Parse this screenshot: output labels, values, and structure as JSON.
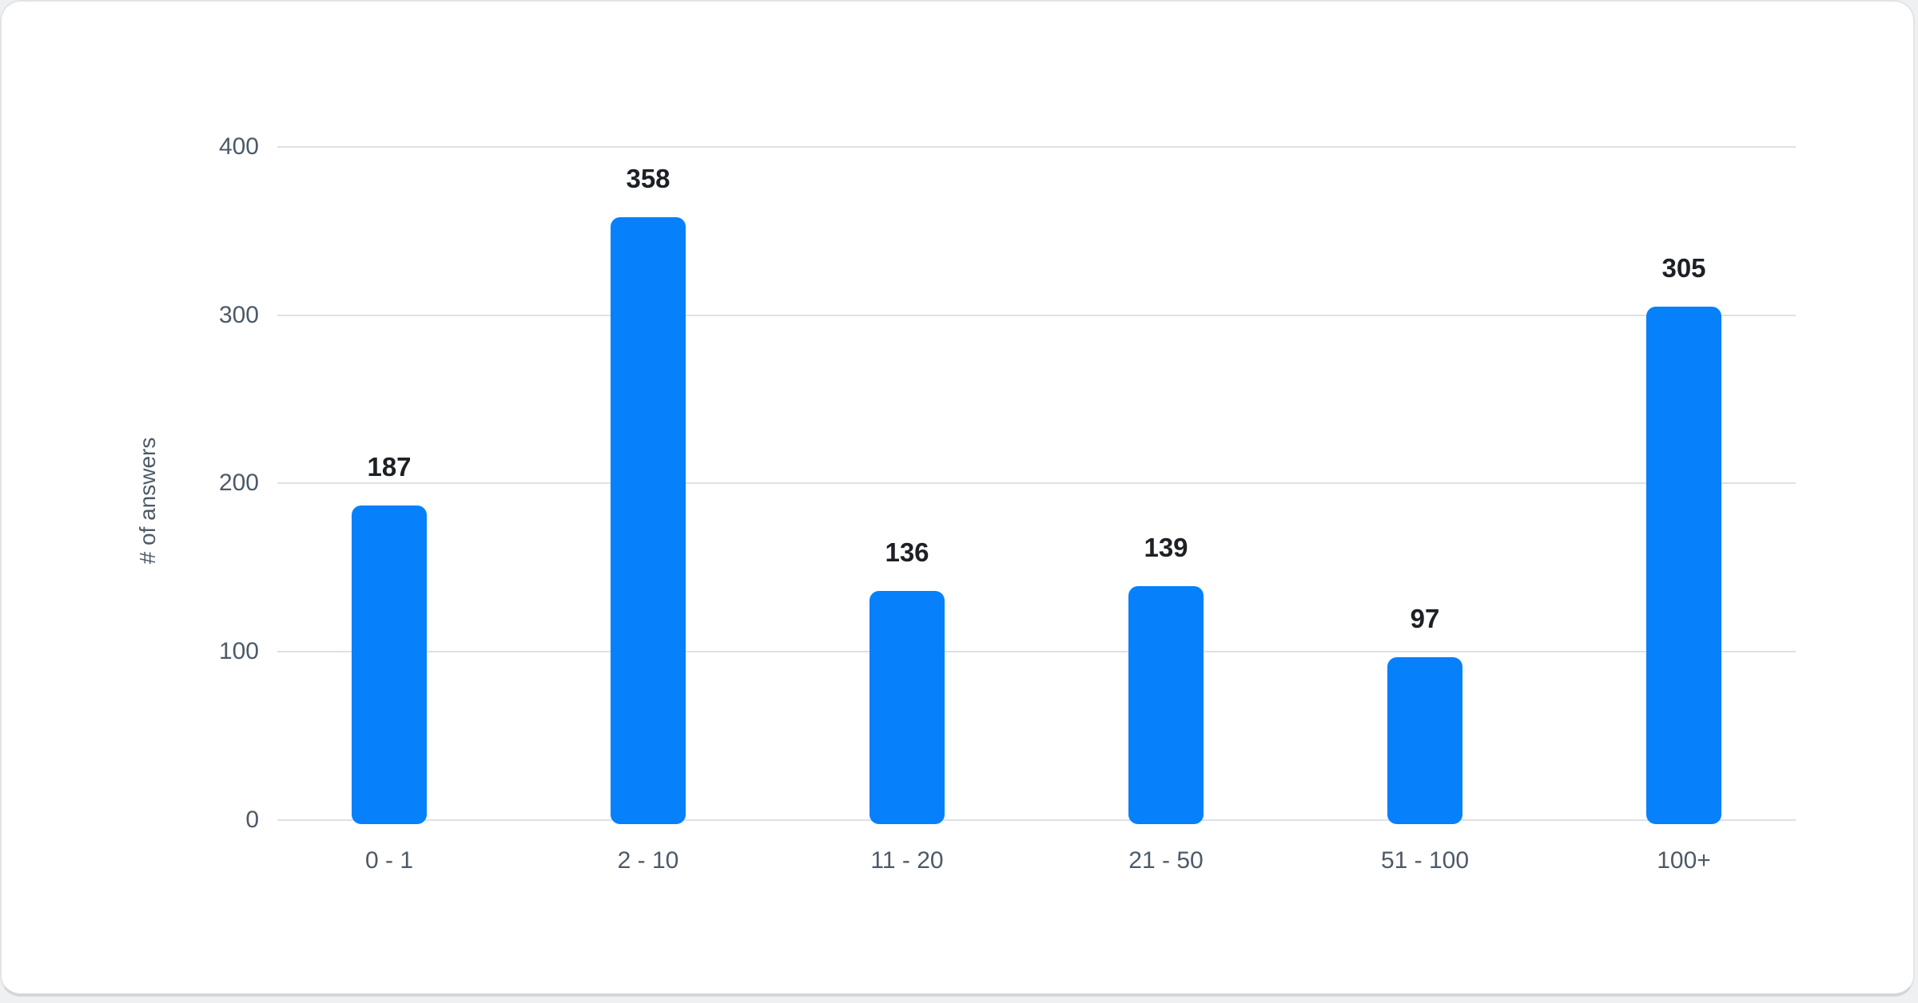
{
  "chart_data": {
    "type": "bar",
    "title": "",
    "categories": [
      "0 - 1",
      "2 - 10",
      "11 - 20",
      "21 - 50",
      "51 - 100",
      "100+"
    ],
    "values": [
      187,
      358,
      136,
      139,
      97,
      305
    ],
    "xlabel": "",
    "ylabel": "# of answers",
    "ylim": [
      0,
      400
    ],
    "yticks": [
      0,
      100,
      200,
      300,
      400
    ],
    "grid": true,
    "legend": false,
    "value_labels_shown": true,
    "colors": {
      "bar": "#0681fb",
      "gridline": "#dde1e6",
      "axis_text": "#4d5a67",
      "value_label_text": "#1d2025",
      "card_background": "#ffffff",
      "page_background": "#eef0f2"
    }
  }
}
